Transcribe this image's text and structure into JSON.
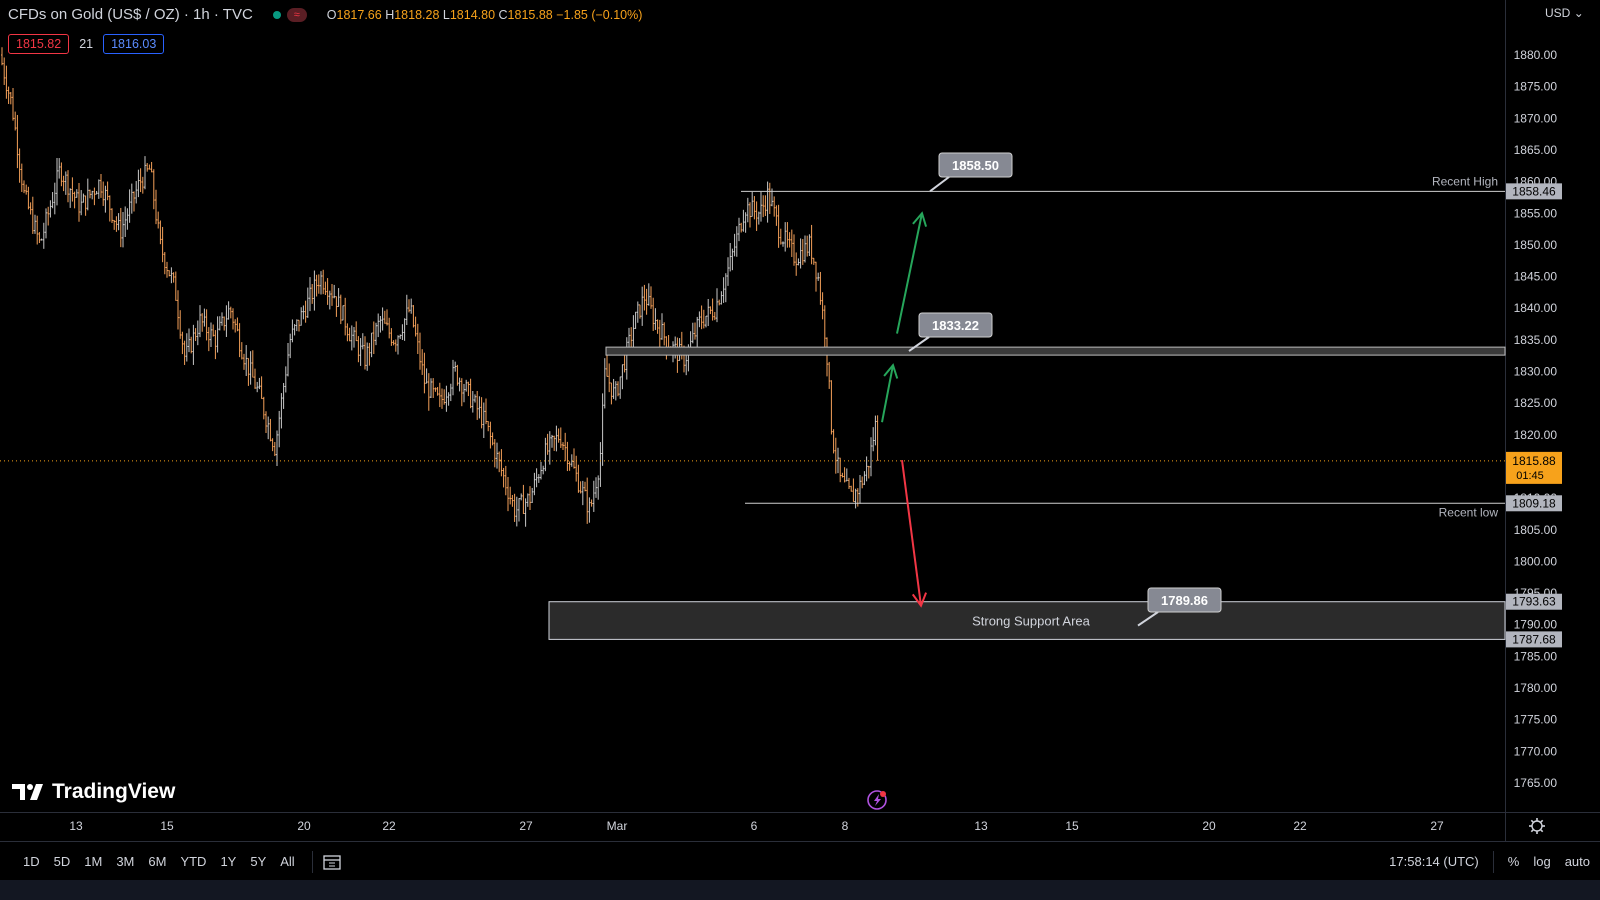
{
  "header": {
    "symbol": "CFDs on Gold (US$ / OZ) · 1h · TVC",
    "open_label": "O",
    "open": "1817.66",
    "high_label": "H",
    "high": "1818.28",
    "low_label": "L",
    "low": "1814.80",
    "close_label": "C",
    "close": "1815.88",
    "change": "−1.85 (−0.10%)",
    "status_icon": "market-open-dot-icon",
    "flag_icon": "wave-icon"
  },
  "quotes": {
    "bid": "1815.82",
    "spread": "21",
    "ask": "1816.03"
  },
  "currency_label": "USD",
  "price_axis": {
    "ticks": [
      "1880.00",
      "1875.00",
      "1870.00",
      "1865.00",
      "1860.00",
      "1855.00",
      "1850.00",
      "1845.00",
      "1840.00",
      "1835.00",
      "1830.00",
      "1825.00",
      "1820.00",
      "1810.00",
      "1805.00",
      "1800.00",
      "1795.00",
      "1790.00",
      "1785.00",
      "1780.00",
      "1775.00",
      "1770.00",
      "1765.00"
    ],
    "current_price": "1815.88",
    "countdown": "01:45",
    "badges": [
      "1858.46",
      "1809.18",
      "1793.63",
      "1787.68"
    ]
  },
  "time_axis": {
    "labels": [
      "13",
      "15",
      "20",
      "22",
      "27",
      "Mar",
      "6",
      "8",
      "13",
      "15",
      "20",
      "22",
      "27"
    ]
  },
  "annotations": {
    "recent_high": "Recent High",
    "recent_low": "Recent low",
    "support_text": "Strong Support Area",
    "callouts": [
      "1858.50",
      "1833.22",
      "1789.86"
    ]
  },
  "colors": {
    "bar_up": "#c8c8c8",
    "bar_down": "#f4a05a",
    "up_arrow": "#26a65b",
    "down_arrow": "#f23645",
    "current_price": "#f7a21b"
  },
  "logo": {
    "text": "TradingView"
  },
  "toolbar": {
    "ranges": [
      "1D",
      "5D",
      "1M",
      "3M",
      "6M",
      "YTD",
      "1Y",
      "5Y",
      "All"
    ],
    "time": "17:58:14 (UTC)",
    "percent": "%",
    "log": "log",
    "auto": "auto"
  },
  "chart_data": {
    "type": "ohlc",
    "symbol": "CFDs on Gold (US$ / OZ)",
    "interval": "1h",
    "ylim": [
      1762,
      1884
    ],
    "last": {
      "open": 1817.66,
      "high": 1818.28,
      "low": 1814.8,
      "close": 1815.88
    },
    "path": [
      [
        0,
        1880
      ],
      [
        12,
        1872
      ],
      [
        24,
        1858
      ],
      [
        40,
        1850
      ],
      [
        60,
        1862
      ],
      [
        80,
        1856
      ],
      [
        100,
        1860
      ],
      [
        120,
        1852
      ],
      [
        140,
        1860
      ],
      [
        150,
        1862
      ],
      [
        160,
        1850
      ],
      [
        175,
        1843
      ],
      [
        185,
        1832
      ],
      [
        200,
        1838
      ],
      [
        215,
        1835
      ],
      [
        230,
        1840
      ],
      [
        245,
        1832
      ],
      [
        260,
        1826
      ],
      [
        275,
        1818
      ],
      [
        290,
        1835
      ],
      [
        305,
        1840
      ],
      [
        320,
        1845
      ],
      [
        335,
        1842
      ],
      [
        350,
        1836
      ],
      [
        365,
        1832
      ],
      [
        380,
        1838
      ],
      [
        395,
        1835
      ],
      [
        410,
        1840
      ],
      [
        425,
        1828
      ],
      [
        440,
        1825
      ],
      [
        455,
        1830
      ],
      [
        470,
        1826
      ],
      [
        485,
        1822
      ],
      [
        500,
        1815
      ],
      [
        515,
        1808
      ],
      [
        530,
        1810
      ],
      [
        545,
        1817
      ],
      [
        560,
        1820
      ],
      [
        575,
        1814
      ],
      [
        590,
        1808
      ],
      [
        600,
        1816
      ],
      [
        605,
        1830
      ],
      [
        615,
        1826
      ],
      [
        625,
        1832
      ],
      [
        635,
        1838
      ],
      [
        645,
        1842
      ],
      [
        655,
        1838
      ],
      [
        670,
        1834
      ],
      [
        685,
        1832
      ],
      [
        700,
        1838
      ],
      [
        715,
        1840
      ],
      [
        730,
        1847
      ],
      [
        745,
        1856
      ],
      [
        760,
        1855
      ],
      [
        768,
        1858
      ],
      [
        780,
        1852
      ],
      [
        795,
        1848
      ],
      [
        810,
        1850
      ],
      [
        818,
        1845
      ],
      [
        826,
        1835
      ],
      [
        832,
        1820
      ],
      [
        840,
        1813
      ],
      [
        852,
        1810
      ],
      [
        860,
        1812
      ],
      [
        868,
        1815
      ],
      [
        876,
        1822
      ],
      [
        878,
        1816
      ]
    ],
    "levels": [
      {
        "label": "Recent High",
        "value": 1858.46
      },
      {
        "label": "",
        "value": 1833.22
      },
      {
        "label": "Recent low",
        "value": 1809.18
      }
    ],
    "zones": [
      {
        "label": "Strong Support Area",
        "from": 1787.68,
        "to": 1793.63
      }
    ],
    "callouts": [
      1858.5,
      1833.22,
      1789.86
    ],
    "arrows": [
      {
        "direction": "up",
        "from": 1836,
        "to": 1855
      },
      {
        "direction": "up",
        "from": 1822,
        "to": 1831
      },
      {
        "direction": "down",
        "from": 1816,
        "to": 1793
      }
    ]
  }
}
